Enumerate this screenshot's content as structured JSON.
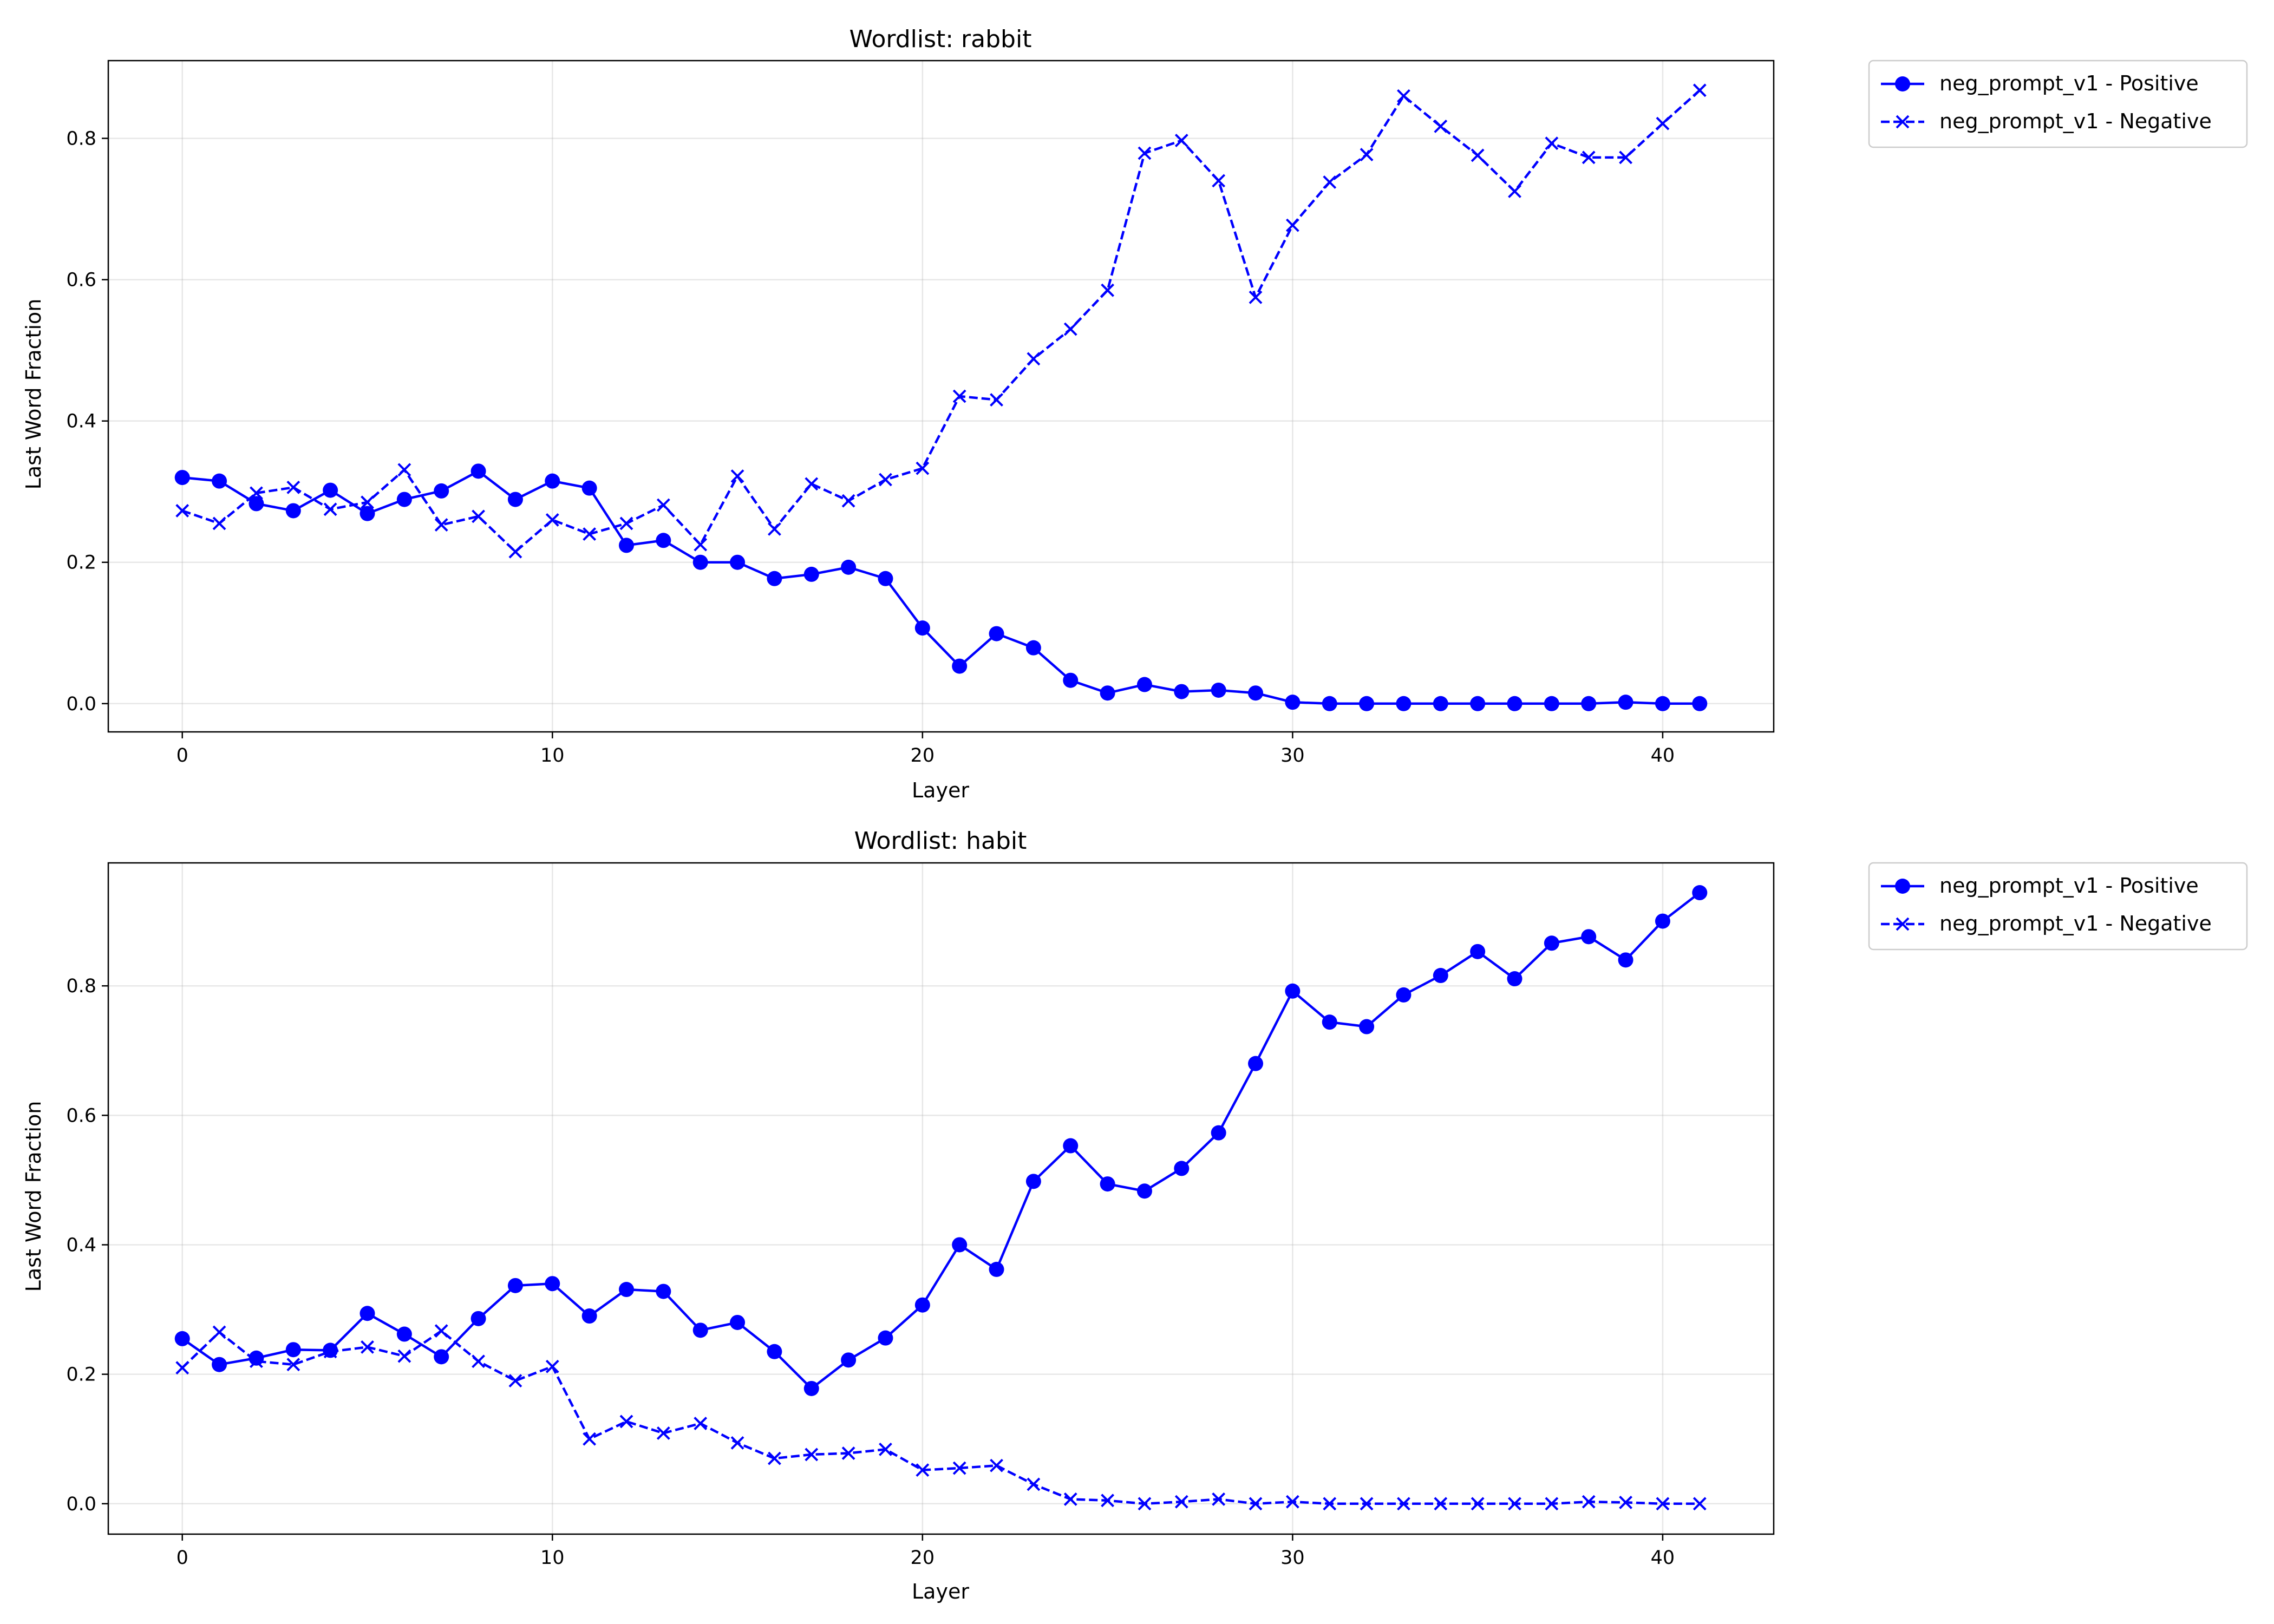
{
  "chart_data": [
    {
      "type": "line",
      "title": "Wordlist: rabbit",
      "xlabel": "Layer",
      "ylabel": "Last Word Fraction",
      "xlim": [
        -2,
        43
      ],
      "ylim": [
        -0.04,
        0.91
      ],
      "xticks": [
        0,
        10,
        20,
        30,
        40
      ],
      "yticks": [
        0.0,
        0.2,
        0.4,
        0.6,
        0.8
      ],
      "grid": true,
      "legend_position": "outside-top-right",
      "x": [
        0,
        1,
        2,
        3,
        4,
        5,
        6,
        7,
        8,
        9,
        10,
        11,
        12,
        13,
        14,
        15,
        16,
        17,
        18,
        19,
        20,
        21,
        22,
        23,
        24,
        25,
        26,
        27,
        28,
        29,
        30,
        31,
        32,
        33,
        34,
        35,
        36,
        37,
        38,
        39,
        40,
        41
      ],
      "series": [
        {
          "name": "neg_prompt_v1 - Positive",
          "color": "#0000ff",
          "line_style": "solid",
          "marker": "circle",
          "values": [
            0.32,
            0.315,
            0.283,
            0.273,
            0.302,
            0.269,
            0.289,
            0.301,
            0.329,
            0.289,
            0.315,
            0.305,
            0.224,
            0.231,
            0.2,
            0.2,
            0.177,
            0.183,
            0.193,
            0.177,
            0.107,
            0.053,
            0.099,
            0.079,
            0.033,
            0.015,
            0.027,
            0.017,
            0.019,
            0.015,
            0.002,
            0.0,
            0.0,
            0.0,
            0.0,
            0.0,
            0.0,
            0.0,
            0.0,
            0.002,
            0.0,
            0.0
          ]
        },
        {
          "name": "neg_prompt_v1 - Negative",
          "color": "#0000ff",
          "line_style": "dashed",
          "marker": "x",
          "values": [
            0.273,
            0.255,
            0.298,
            0.306,
            0.275,
            0.285,
            0.331,
            0.253,
            0.265,
            0.215,
            0.26,
            0.24,
            0.255,
            0.281,
            0.225,
            0.322,
            0.247,
            0.311,
            0.287,
            0.317,
            0.333,
            0.435,
            0.43,
            0.488,
            0.53,
            0.585,
            0.779,
            0.797,
            0.74,
            0.575,
            0.677,
            0.738,
            0.777,
            0.86,
            0.817,
            0.776,
            0.725,
            0.793,
            0.773,
            0.773,
            0.821,
            0.868
          ]
        }
      ]
    },
    {
      "type": "line",
      "title": "Wordlist: habit",
      "xlabel": "Layer",
      "ylabel": "Last Word Fraction",
      "xlim": [
        -2,
        43
      ],
      "ylim": [
        -0.047,
        0.99
      ],
      "xticks": [
        0,
        10,
        20,
        30,
        40
      ],
      "yticks": [
        0.0,
        0.2,
        0.4,
        0.6,
        0.8
      ],
      "grid": true,
      "legend_position": "outside-top-right",
      "x": [
        0,
        1,
        2,
        3,
        4,
        5,
        6,
        7,
        8,
        9,
        10,
        11,
        12,
        13,
        14,
        15,
        16,
        17,
        18,
        19,
        20,
        21,
        22,
        23,
        24,
        25,
        26,
        27,
        28,
        29,
        30,
        31,
        32,
        33,
        34,
        35,
        36,
        37,
        38,
        39,
        40,
        41
      ],
      "series": [
        {
          "name": "neg_prompt_v1 - Positive",
          "color": "#0000ff",
          "line_style": "solid",
          "marker": "circle",
          "values": [
            0.255,
            0.215,
            0.225,
            0.238,
            0.237,
            0.294,
            0.262,
            0.227,
            0.286,
            0.337,
            0.34,
            0.29,
            0.331,
            0.328,
            0.268,
            0.28,
            0.235,
            0.178,
            0.222,
            0.256,
            0.307,
            0.4,
            0.362,
            0.498,
            0.553,
            0.494,
            0.483,
            0.518,
            0.573,
            0.68,
            0.792,
            0.744,
            0.737,
            0.786,
            0.816,
            0.853,
            0.811,
            0.866,
            0.876,
            0.84,
            0.9,
            0.944
          ]
        },
        {
          "name": "neg_prompt_v1 - Negative",
          "color": "#0000ff",
          "line_style": "dashed",
          "marker": "x",
          "values": [
            0.21,
            0.265,
            0.22,
            0.215,
            0.235,
            0.242,
            0.228,
            0.267,
            0.22,
            0.19,
            0.212,
            0.1,
            0.127,
            0.109,
            0.124,
            0.094,
            0.07,
            0.076,
            0.078,
            0.084,
            0.052,
            0.055,
            0.059,
            0.03,
            0.007,
            0.005,
            0.0,
            0.003,
            0.007,
            0.0,
            0.003,
            0.0,
            0.0,
            0.0,
            0.0,
            0.0,
            0.0,
            0.0,
            0.003,
            0.002,
            0.0,
            0.0
          ]
        }
      ]
    }
  ]
}
